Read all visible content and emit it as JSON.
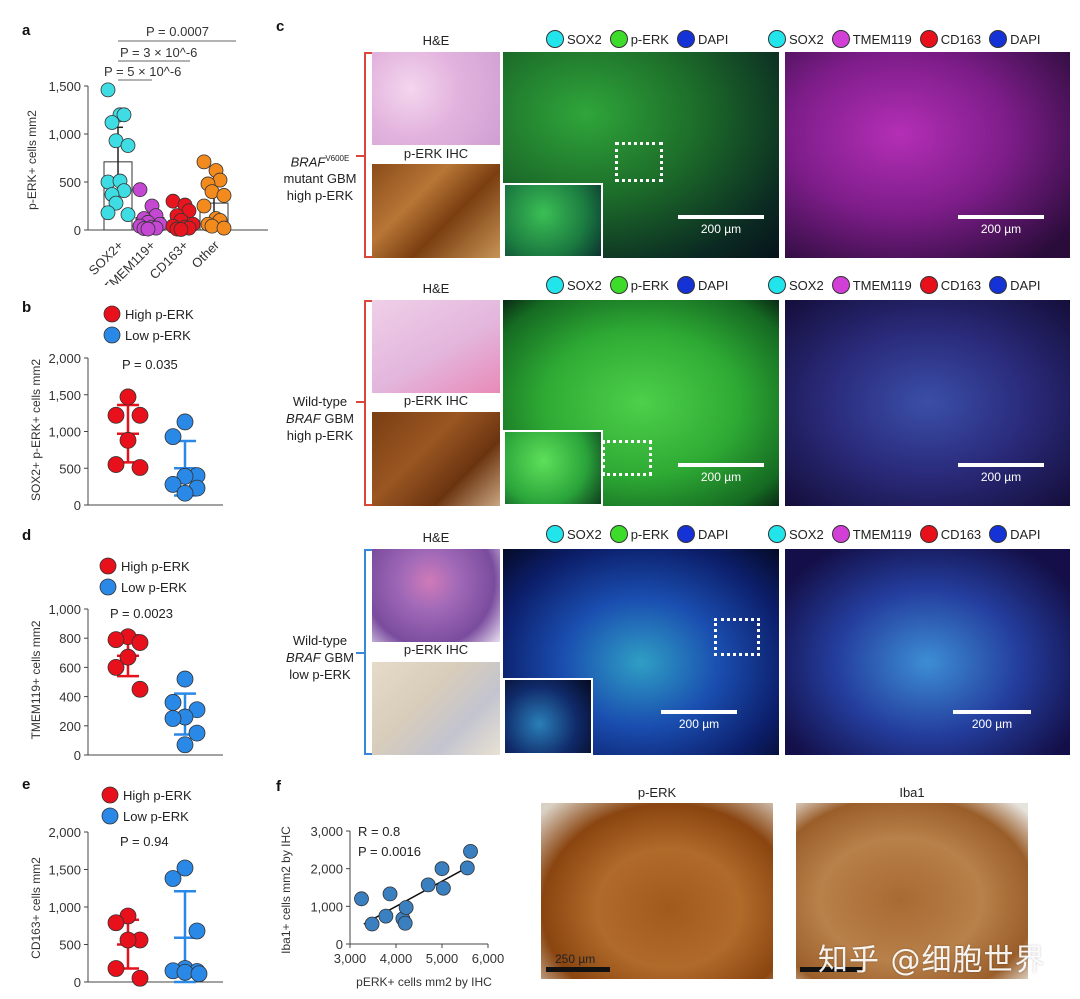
{
  "panels": {
    "a": {
      "letter": "a"
    },
    "b": {
      "letter": "b"
    },
    "c": {
      "letter": "c"
    },
    "d": {
      "letter": "d"
    },
    "e": {
      "letter": "e"
    },
    "f": {
      "letter": "f"
    }
  },
  "legend_high_low": {
    "high": "High p-ERK",
    "low": "Low p-ERK"
  },
  "panel_c": {
    "he_label": "H&E",
    "ihc_label": "p-ERK IHC",
    "legend_left": [
      {
        "label": "SOX2",
        "color": "#22e5ec"
      },
      {
        "label": "p-ERK",
        "color": "#3ddc2a"
      },
      {
        "label": "DAPI",
        "color": "#1432d6"
      }
    ],
    "legend_right": [
      {
        "label": "SOX2",
        "color": "#22e5ec"
      },
      {
        "label": "TMEM119",
        "color": "#d23fd6"
      },
      {
        "label": "CD163",
        "color": "#e8101a"
      },
      {
        "label": "DAPI",
        "color": "#1432d6"
      }
    ],
    "scale_label": "200 µm",
    "rows": [
      {
        "line1": "BRAF",
        "sup": "V600E",
        "line2": "mutant GBM",
        "line3": "high p-ERK",
        "bracket_color": "#d9463c"
      },
      {
        "line1": "Wild-type",
        "line2_italic": "BRAF",
        "line2_rest": " GBM",
        "line3": "high p-ERK",
        "bracket_color": "#d9463c"
      },
      {
        "line1": "Wild-type",
        "line2_italic": "BRAF",
        "line2_rest": " GBM",
        "line3": "low p-ERK",
        "bracket_color": "#3a86d8"
      }
    ]
  },
  "panel_f_images": {
    "left_title": "p-ERK",
    "right_title": "Iba1",
    "scale_label": "250 µm"
  },
  "watermark": "知乎 @细胞世界",
  "chart_data": [
    {
      "id": "a",
      "type": "bar",
      "title": "",
      "xlabel": "",
      "ylabel": "p-ERK+ cells mm2",
      "ylabel_parts": {
        "pre": "p-ERK",
        "sup": "+",
        "mid": " cells mm",
        "sup2": "2"
      },
      "ylim": [
        0,
        1500
      ],
      "yticks": [
        "0",
        "500",
        "1,000",
        "1,500"
      ],
      "categories": [
        "SOX2+",
        "TMEM119+",
        "CD163+",
        "Other"
      ],
      "colors": [
        "#3fdde3",
        "#c548d3",
        "#e8151f",
        "#f38a1e"
      ],
      "values": [
        710,
        130,
        100,
        280
      ],
      "error": [
        [
          350,
          1070
        ],
        [
          30,
          230
        ],
        [
          20,
          180
        ],
        [
          90,
          520
        ]
      ],
      "points": [
        [
          1460,
          1200,
          1200,
          1120,
          930,
          880,
          500,
          510,
          410,
          370,
          280,
          160,
          180
        ],
        [
          420,
          250,
          150,
          120,
          80,
          60,
          40,
          30,
          20,
          15,
          10
        ],
        [
          300,
          260,
          200,
          150,
          100,
          60,
          40,
          30,
          20,
          10,
          5
        ],
        [
          710,
          620,
          520,
          480,
          400,
          360,
          250,
          120,
          100,
          60,
          40,
          20
        ]
      ],
      "annotations": [
        "P = 5 × 10^-6",
        "P = 3 × 10^-6",
        "P = 0.0007"
      ]
    },
    {
      "id": "b",
      "type": "scatter",
      "ylabel": "SOX2+ p-ERK+ cells mm2",
      "ylim": [
        0,
        2000
      ],
      "yticks": [
        "0",
        "500",
        "1,000",
        "1,500",
        "2,000"
      ],
      "series": [
        {
          "name": "High p-ERK",
          "color": "#e8101a",
          "values": [
            1470,
            1220,
            1220,
            880,
            550,
            510
          ],
          "mean": 970,
          "sd": [
            580,
            1360
          ]
        },
        {
          "name": "Low p-ERK",
          "color": "#2a88e6",
          "values": [
            1130,
            930,
            400,
            390,
            280,
            230,
            160
          ],
          "mean": 500,
          "sd": [
            130,
            870
          ]
        }
      ],
      "annotation": "P = 0.035"
    },
    {
      "id": "d",
      "type": "scatter",
      "ylabel": "TMEM119+ cells mm2",
      "ylim": [
        0,
        1000
      ],
      "yticks": [
        "0",
        "200",
        "400",
        "600",
        "800",
        "1,000"
      ],
      "series": [
        {
          "name": "High p-ERK",
          "color": "#e8101a",
          "values": [
            810,
            790,
            770,
            670,
            600,
            450
          ],
          "mean": 680,
          "sd": [
            540,
            820
          ]
        },
        {
          "name": "Low p-ERK",
          "color": "#2a88e6",
          "values": [
            520,
            360,
            310,
            260,
            250,
            150,
            70
          ],
          "mean": 280,
          "sd": [
            140,
            420
          ]
        }
      ],
      "annotation": "P = 0.0023"
    },
    {
      "id": "e",
      "type": "scatter",
      "ylabel": "CD163+ cells mm2",
      "ylim": [
        0,
        2000
      ],
      "yticks": [
        "0",
        "500",
        "1,000",
        "1,500",
        "2,000"
      ],
      "series": [
        {
          "name": "High p-ERK",
          "color": "#e8101a",
          "values": [
            880,
            790,
            560,
            560,
            180,
            50
          ],
          "mean": 500,
          "sd": [
            180,
            830
          ]
        },
        {
          "name": "Low p-ERK",
          "color": "#2a88e6",
          "values": [
            1520,
            1380,
            680,
            180,
            150,
            140,
            130,
            110
          ],
          "mean": 590,
          "sd": [
            0,
            1210
          ]
        }
      ],
      "annotation": "P = 0.94"
    },
    {
      "id": "f",
      "type": "scatter",
      "xlabel": "pERK+ cells mm2 by IHC",
      "ylabel": "Iba1+ cells mm2 by IHC",
      "xlim": [
        3000,
        6000
      ],
      "ylim": [
        0,
        3000
      ],
      "xticks": [
        "3,000",
        "4,000",
        "5,000",
        "6,000"
      ],
      "yticks": [
        "0",
        "1,000",
        "2,000",
        "3,000"
      ],
      "color": "#3a7fc0",
      "x": [
        3250,
        3480,
        3780,
        3870,
        4150,
        4200,
        4220,
        4700,
        5000,
        5030,
        5550,
        5620
      ],
      "y": [
        1200,
        530,
        740,
        1330,
        670,
        550,
        970,
        1570,
        2000,
        1480,
        2020,
        2460
      ],
      "fit_line": [
        [
          3300,
          530
        ],
        [
          5500,
          2000
        ]
      ],
      "annotations": [
        "R = 0.8",
        "P = 0.0016"
      ]
    }
  ]
}
